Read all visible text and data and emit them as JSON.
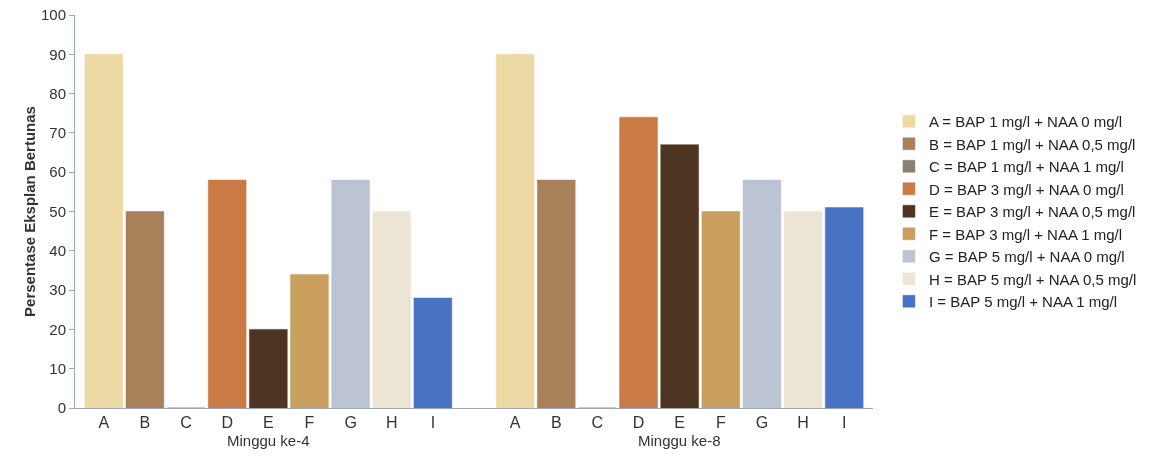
{
  "chart_data": {
    "type": "bar",
    "ylabel": "Persentase Eksplan Bertunas",
    "categories": [
      "A",
      "B",
      "C",
      "D",
      "E",
      "F",
      "G",
      "H",
      "I",
      null,
      "A",
      "B",
      "C",
      "D",
      "E",
      "F",
      "G",
      "H",
      "I"
    ],
    "series": [
      {
        "name": "A = BAP 1 mg/l + NAA 0 mg/l",
        "color": "#ecd9a4",
        "values": [
          90,
          null,
          null,
          null,
          null,
          null,
          null,
          null,
          null,
          null,
          90,
          null,
          null,
          null,
          null,
          null,
          null,
          null,
          null
        ]
      },
      {
        "name": "B = BAP 1 mg/l + NAA 0,5 mg/l",
        "color": "#a8805a",
        "values": [
          null,
          50,
          null,
          null,
          null,
          null,
          null,
          null,
          null,
          null,
          null,
          58,
          null,
          null,
          null,
          null,
          null,
          null,
          null
        ]
      },
      {
        "name": "C = BAP 1 mg/l + NAA 1 mg/l",
        "color": "#8a8070",
        "values": [
          null,
          null,
          0,
          null,
          null,
          null,
          null,
          null,
          null,
          null,
          null,
          null,
          0,
          null,
          null,
          null,
          null,
          null,
          null
        ]
      },
      {
        "name": "D = BAP 3 mg/l + NAA 0 mg/l",
        "color": "#c97a45",
        "values": [
          null,
          null,
          null,
          58,
          null,
          null,
          null,
          null,
          null,
          null,
          null,
          null,
          null,
          74,
          null,
          null,
          null,
          null,
          null
        ]
      },
      {
        "name": "E = BAP 3 mg/l + NAA 0,5 mg/l",
        "color": "#4e3522",
        "values": [
          null,
          null,
          null,
          null,
          20,
          null,
          null,
          null,
          null,
          null,
          null,
          null,
          null,
          null,
          67,
          null,
          null,
          null,
          null
        ]
      },
      {
        "name": "F = BAP 3 mg/l + NAA 1 mg/l",
        "color": "#c9a05e",
        "values": [
          null,
          null,
          null,
          null,
          null,
          34,
          null,
          null,
          null,
          null,
          null,
          null,
          null,
          null,
          null,
          50,
          null,
          null,
          null
        ]
      },
      {
        "name": "G = BAP 5 mg/l + NAA 0 mg/l",
        "color": "#bcc3d2",
        "values": [
          null,
          null,
          null,
          null,
          null,
          null,
          58,
          null,
          null,
          null,
          null,
          null,
          null,
          null,
          null,
          null,
          58,
          null,
          null
        ]
      },
      {
        "name": "H = BAP 5 mg/l + NAA 0,5 mg/l",
        "color": "#ece5d3",
        "values": [
          null,
          null,
          null,
          null,
          null,
          null,
          null,
          50,
          null,
          null,
          null,
          null,
          null,
          null,
          null,
          null,
          null,
          50,
          null
        ]
      },
      {
        "name": "I = BAP 5 mg/l + NAA 1 mg/l",
        "color": "#4a72c4",
        "values": [
          null,
          null,
          null,
          null,
          null,
          null,
          null,
          null,
          28,
          null,
          null,
          null,
          null,
          null,
          null,
          null,
          null,
          null,
          51
        ]
      }
    ],
    "annotations": [
      "Minggu ke-4",
      "Minggu ke-8"
    ],
    "ylim": [
      0,
      100
    ],
    "yticks": [
      0,
      10,
      20,
      30,
      40,
      50,
      60,
      70,
      80,
      90,
      100
    ],
    "grid": false,
    "legend": "right"
  }
}
